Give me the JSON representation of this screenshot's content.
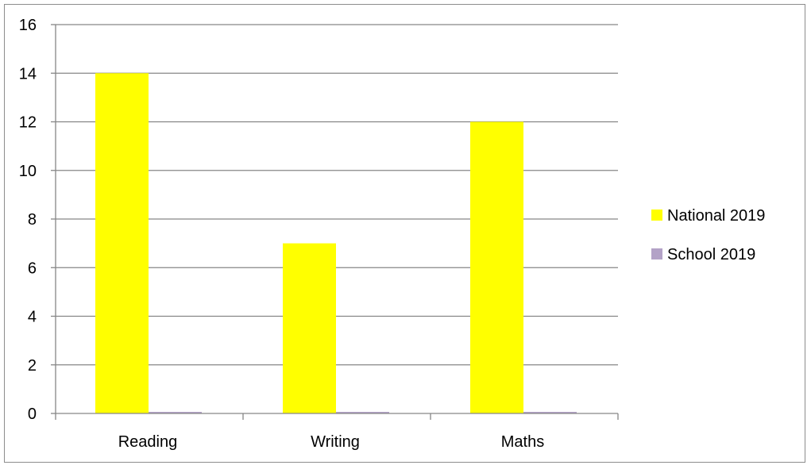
{
  "chart_data": {
    "type": "bar",
    "title": "",
    "xlabel": "",
    "ylabel": "",
    "categories": [
      "Reading",
      "Writing",
      "Maths"
    ],
    "series": [
      {
        "name": "National 2019",
        "values": [
          14,
          7,
          12
        ],
        "color": "#ffff00"
      },
      {
        "name": "School 2019",
        "values": [
          0,
          0,
          0
        ],
        "color": "#b3a2c7"
      }
    ],
    "ylim": [
      0,
      16
    ],
    "yticks": [
      0,
      2,
      4,
      6,
      8,
      10,
      12,
      14,
      16
    ],
    "grid": true,
    "legend_position": "right"
  }
}
